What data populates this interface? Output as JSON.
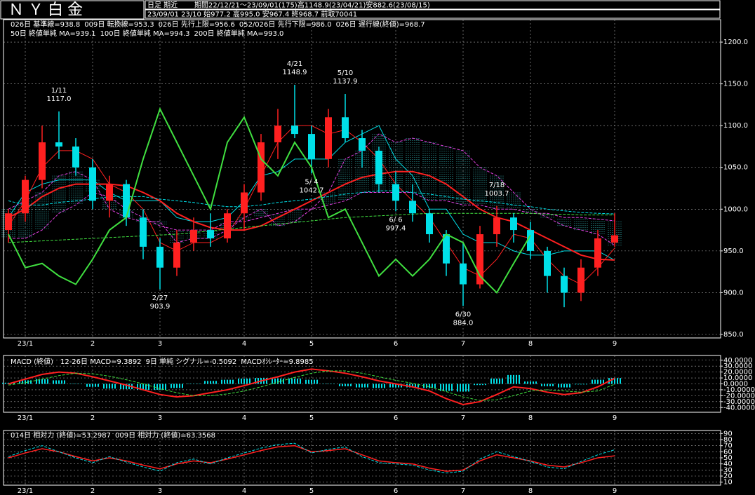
{
  "chart_data": [
    {
      "type": "candlestick",
      "title": "ＮＹ白金",
      "subtitle": "日足 期近",
      "period": "期間22/12/21～23/09/01(175)高1148.9(23/04/21)安882.6(23/08/15)",
      "latest": "23/09/01 23/10 始977.2 高995.0 安967.4 終968.7 前取70041",
      "categories": [
        null,
        "23/1",
        null,
        null,
        null,
        "2",
        null,
        null,
        null,
        "3",
        null,
        null,
        null,
        null,
        "4",
        null,
        null,
        null,
        "5",
        null,
        null,
        null,
        null,
        "6",
        null,
        null,
        null,
        "7",
        null,
        null,
        null,
        "8",
        null,
        null,
        null,
        null,
        "9"
      ],
      "open": [
        975,
        995,
        1035,
        1080,
        1075,
        1050,
        1010,
        1030,
        990,
        955,
        930,
        960,
        975,
        965,
        995,
        1020,
        1080,
        1100,
        1090,
        1060,
        1110,
        1085,
        1070,
        1030,
        1010,
        995,
        970,
        935,
        910,
        970,
        990,
        975,
        950,
        920,
        900,
        930,
        960
      ],
      "high": [
        1000,
        1040,
        1100,
        1117,
        1085,
        1060,
        1040,
        1035,
        1000,
        965,
        975,
        990,
        995,
        1000,
        1030,
        1090,
        1120,
        1148.9,
        1100,
        1120,
        1137.9,
        1095,
        1075,
        1045,
        1030,
        1000,
        975,
        960,
        980,
        1003.7,
        995,
        985,
        955,
        930,
        940,
        975,
        995
      ],
      "low": [
        960,
        985,
        1025,
        1060,
        1040,
        1000,
        990,
        980,
        940,
        903.9,
        920,
        950,
        955,
        960,
        975,
        1010,
        1060,
        1085,
        1042.7,
        1050,
        1080,
        1050,
        1020,
        997.4,
        985,
        960,
        920,
        884,
        905,
        955,
        960,
        940,
        900,
        882.6,
        890,
        920,
        955
      ],
      "close": [
        995,
        1035,
        1080,
        1075,
        1050,
        1010,
        1030,
        990,
        955,
        930,
        960,
        975,
        965,
        995,
        1020,
        1080,
        1100,
        1090,
        1060,
        1110,
        1085,
        1070,
        1030,
        1010,
        995,
        970,
        935,
        910,
        970,
        990,
        975,
        950,
        920,
        900,
        930,
        965,
        968.7
      ],
      "up_color": "#ff2020",
      "down_color": "#00e0e8",
      "cloud_color": "#40e0e0",
      "series": [
        {
          "name": "026日 基準線=938.8",
          "color": "#00e0e8",
          "values": [
            990,
            1020,
            1030,
            1035,
            1035,
            1035,
            1020,
            1010,
            1010,
            1010,
            990,
            985,
            985,
            990,
            1010,
            1040,
            1045,
            1060,
            1060,
            1060,
            1080,
            1090,
            1100,
            1060,
            1040,
            1000,
            1000,
            970,
            960,
            960,
            950,
            945,
            945,
            950,
            950,
            950,
            938.8
          ]
        },
        {
          "name": "009日 転換線=953.3",
          "color": "#ff2020",
          "values": [
            980,
            1010,
            1050,
            1070,
            1070,
            1060,
            1030,
            1020,
            1000,
            960,
            950,
            960,
            960,
            970,
            1000,
            1040,
            1080,
            1100,
            1100,
            1090,
            1095,
            1080,
            1060,
            1030,
            1010,
            990,
            960,
            930,
            920,
            940,
            970,
            965,
            940,
            920,
            910,
            930,
            953.3
          ]
        },
        {
          "name": "026日 先行上限=956.6",
          "color": "#e040e0",
          "dash": true,
          "cloud": true,
          "values": [
            1000,
            1010,
            1020,
            1040,
            1045,
            1035,
            1000,
            990,
            985,
            985,
            960,
            965,
            965,
            975,
            990,
            1000,
            980,
            985,
            1000,
            1020,
            1060,
            1070,
            1090,
            1080,
            1085,
            1080,
            1075,
            1070,
            1050,
            1040,
            1020,
            1000,
            990,
            980,
            975,
            970,
            956.6
          ]
        },
        {
          "name": "052/026日 先行下限=986.0",
          "color": "#e040e0",
          "dash": true,
          "cloud": true,
          "values": [
            965,
            965,
            975,
            995,
            1005,
            1020,
            1015,
            1000,
            990,
            980,
            975,
            975,
            975,
            985,
            985,
            990,
            995,
            1000,
            1000,
            1005,
            1010,
            1020,
            1020,
            1020,
            1020,
            1010,
            1010,
            1005,
            1005,
            1000,
            1000,
            995,
            995,
            990,
            990,
            988,
            986.0
          ]
        },
        {
          "name": "026日 遅行線(終値)=968.7",
          "color": "#40e040",
          "width": 2,
          "values": [
            970,
            930,
            935,
            920,
            910,
            940,
            975,
            990,
            1060,
            1120,
            1080,
            1040,
            1000,
            1080,
            1110,
            1060,
            1040,
            1080,
            1050,
            990,
            1000,
            960,
            920,
            940,
            920,
            940,
            970,
            960,
            920,
            900,
            935,
            968.7,
            null,
            null,
            null,
            null,
            null
          ]
        },
        {
          "name": "50日 終値単純 MA=939.1",
          "color": "#ff2020",
          "width": 2,
          "values": [
            990,
            1000,
            1015,
            1025,
            1030,
            1030,
            1030,
            1028,
            1020,
            1010,
            995,
            985,
            978,
            975,
            975,
            980,
            990,
            1000,
            1010,
            1020,
            1030,
            1038,
            1042,
            1045,
            1045,
            1040,
            1030,
            1015,
            1000,
            990,
            985,
            975,
            965,
            955,
            945,
            940,
            939.1
          ]
        },
        {
          "name": "100日 終値単純 MA=994.3",
          "color": "#00e0e8",
          "dash": true,
          "values": [
            1010,
            1005,
            1005,
            1008,
            1010,
            1012,
            1015,
            1015,
            1015,
            1012,
            1010,
            1008,
            1005,
            1003,
            1003,
            1005,
            1008,
            1010,
            1012,
            1015,
            1018,
            1020,
            1022,
            1022,
            1020,
            1018,
            1015,
            1012,
            1010,
            1008,
            1005,
            1003,
            1000,
            998,
            996,
            995,
            994.3
          ]
        },
        {
          "name": "200日 終値単純 MA=993.0",
          "color": "#40e040",
          "dash": true,
          "values": [
            960,
            961,
            962,
            963,
            964,
            965,
            966,
            967,
            968,
            969,
            970,
            972,
            974,
            976,
            978,
            980,
            982,
            984,
            986,
            988,
            990,
            991,
            992,
            993,
            994,
            995,
            995,
            995,
            995,
            995,
            995,
            995,
            994,
            994,
            993,
            993,
            993.0
          ]
        }
      ],
      "annotations": [
        {
          "date": "1/11",
          "price": "1117.0",
          "color": "#ff4040"
        },
        {
          "date": "4/21",
          "price": "1148.9",
          "color": "#ff4040"
        },
        {
          "date": "5/10",
          "price": "1137.9",
          "color": "#ff4040"
        },
        {
          "date": "7/18",
          "price": "1003.7",
          "color": "#ff4040"
        },
        {
          "date": "2/27",
          "price": "903.9",
          "color": "#40e0e8"
        },
        {
          "date": "5/ 4",
          "price": "1042.7",
          "color": "#40e0e8"
        },
        {
          "date": "6/ 6",
          "price": "997.4",
          "color": "#40e0e8"
        },
        {
          "date": "6/30",
          "price": "884.0",
          "color": "#40e0e8"
        }
      ],
      "ylim": [
        845.8,
        1226.9
      ],
      "yticks": [
        {
          "value": 850,
          "label": "850.0"
        },
        {
          "value": 900,
          "label": "900.0"
        },
        {
          "value": 950,
          "label": "950.0"
        },
        {
          "value": 1000,
          "label": "1000.0"
        },
        {
          "value": 1050,
          "label": "1050.0"
        },
        {
          "value": 1100,
          "label": "1100.0"
        },
        {
          "value": 1150,
          "label": "1150.0"
        },
        {
          "value": 1200,
          "label": "1200.0"
        }
      ],
      "grid": true
    },
    {
      "type": "line",
      "title": "MACD (終値)",
      "series": [
        {
          "name": "12-26日 MACD=9.3892",
          "color": "#ff2020",
          "width": 2,
          "values": [
            0,
            8,
            16,
            20,
            18,
            12,
            5,
            -2,
            -10,
            -18,
            -22,
            -20,
            -15,
            -10,
            -3,
            5,
            12,
            20,
            25,
            22,
            18,
            12,
            5,
            0,
            -5,
            -12,
            -25,
            -35,
            -30,
            -18,
            -5,
            -8,
            -14,
            -18,
            -15,
            -5,
            9.3892
          ]
        },
        {
          "name": "9日 単純 シグナル=-0.5092",
          "color": "#40e040",
          "dash": true,
          "values": [
            -2,
            2,
            8,
            14,
            18,
            17,
            13,
            7,
            0,
            -8,
            -15,
            -20,
            -20,
            -17,
            -12,
            -5,
            3,
            11,
            18,
            22,
            22,
            18,
            12,
            6,
            1,
            -5,
            -13,
            -22,
            -28,
            -27,
            -20,
            -12,
            -10,
            -12,
            -14,
            -12,
            -0.5092
          ]
        },
        {
          "name": "MACDｵｼﾚｰﾀｰ=9.8985",
          "color": "#00e0e8",
          "bars": true,
          "values": [
            2,
            6,
            8,
            6,
            0,
            -5,
            -8,
            -9,
            -10,
            -10,
            -7,
            0,
            5,
            7,
            9,
            10,
            9,
            9,
            7,
            0,
            -4,
            -6,
            -7,
            -6,
            -6,
            -7,
            -12,
            -13,
            -2,
            9,
            15,
            4,
            -4,
            -6,
            -1,
            7,
            9.8985
          ]
        }
      ],
      "ylim": [
        -48,
        48
      ],
      "yticks": [
        {
          "value": -40,
          "label": "-40.0000"
        },
        {
          "value": -30,
          "label": "-30.0000"
        },
        {
          "value": -20,
          "label": "-20.0000"
        },
        {
          "value": -10,
          "label": "-10.0000"
        },
        {
          "value": 0,
          "label": "0.0000"
        },
        {
          "value": 10,
          "label": "10.0000"
        },
        {
          "value": 20,
          "label": "20.0000"
        },
        {
          "value": 30,
          "label": "30.0000"
        },
        {
          "value": 40,
          "label": "40.0000"
        }
      ],
      "grid": true
    },
    {
      "type": "line",
      "series": [
        {
          "name": "014日 相対力 (終値)=53.2987",
          "color": "#ff2020",
          "width": 1.5,
          "values": [
            50,
            58,
            65,
            60,
            52,
            45,
            50,
            45,
            38,
            32,
            40,
            45,
            42,
            48,
            55,
            62,
            68,
            70,
            60,
            62,
            65,
            55,
            45,
            42,
            40,
            33,
            28,
            30,
            45,
            55,
            50,
            45,
            38,
            35,
            42,
            50,
            53.2987
          ]
        },
        {
          "name": "009日 相対力 (終値)=63.3568",
          "color": "#00e0e8",
          "dash": true,
          "values": [
            52,
            62,
            70,
            60,
            50,
            42,
            52,
            43,
            35,
            28,
            42,
            48,
            40,
            50,
            58,
            66,
            72,
            74,
            58,
            64,
            68,
            52,
            42,
            40,
            38,
            30,
            25,
            28,
            48,
            60,
            52,
            44,
            35,
            32,
            44,
            55,
            63.3568
          ]
        }
      ],
      "ylim": [
        5,
        95
      ],
      "yticks": [
        10,
        20,
        30,
        40,
        50,
        60,
        70,
        80,
        90
      ],
      "grid": true
    }
  ]
}
